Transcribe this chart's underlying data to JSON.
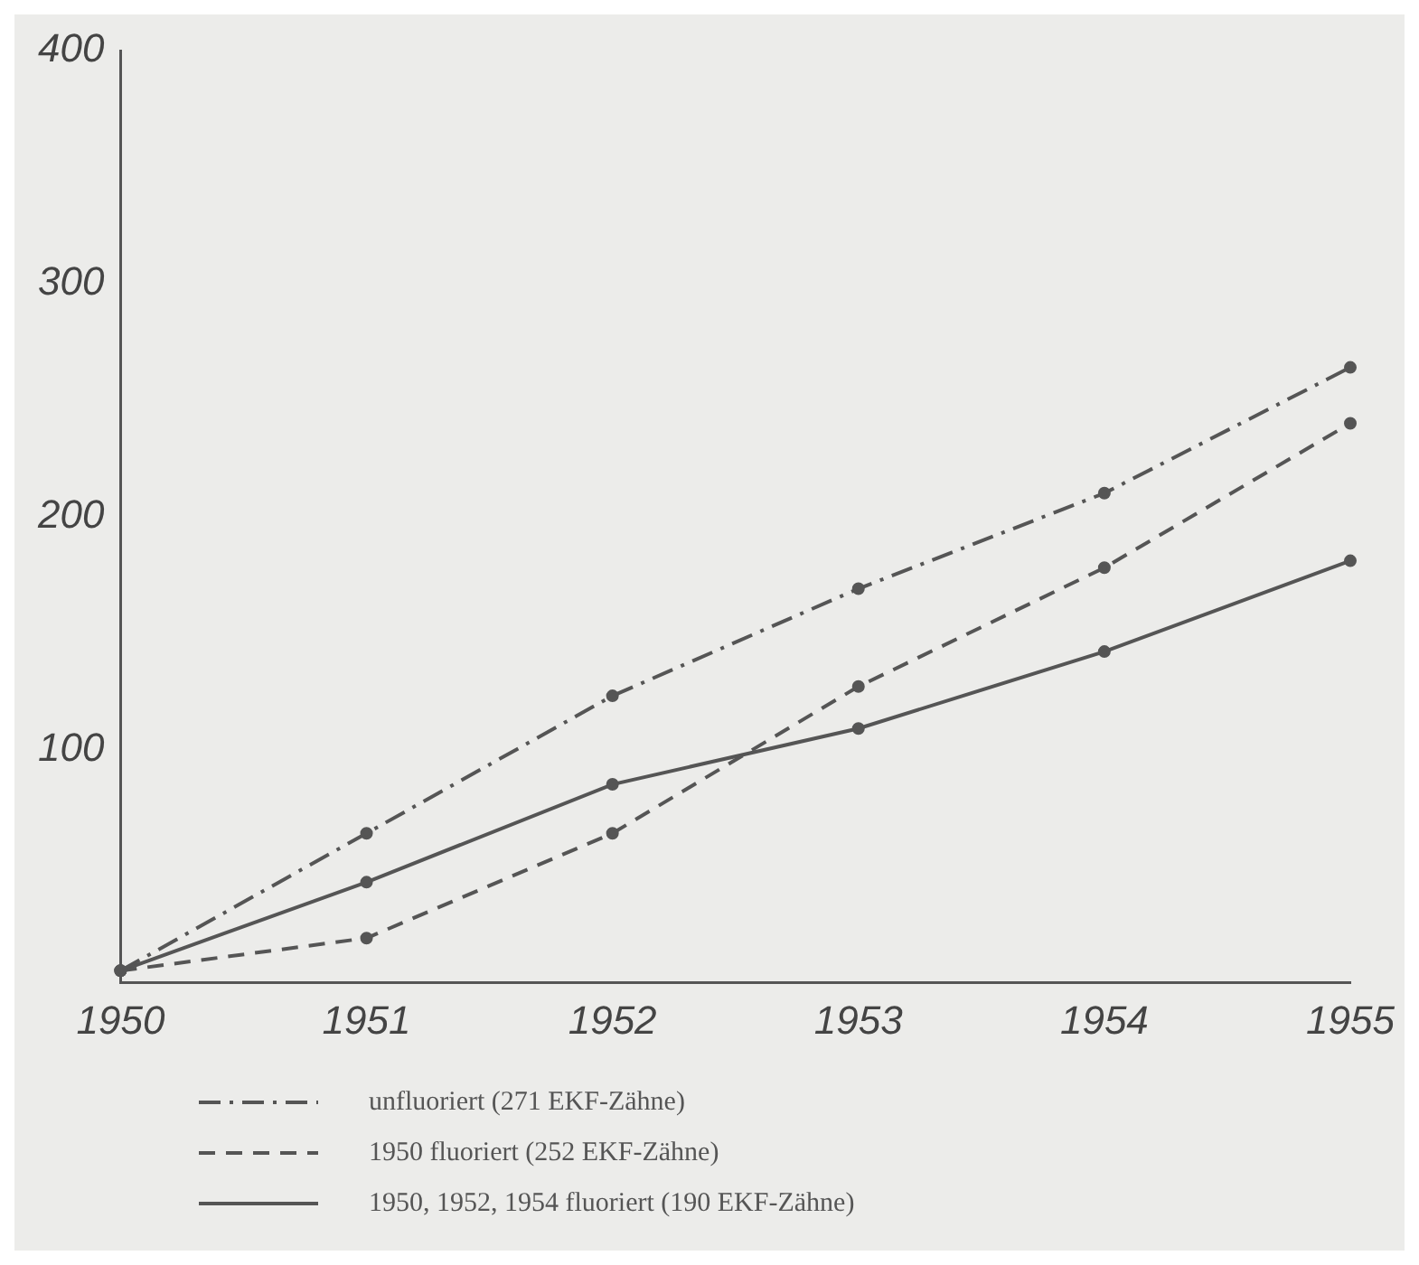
{
  "chart_data": {
    "type": "line",
    "categories": [
      "1950",
      "1951",
      "1952",
      "1953",
      "1954",
      "1955"
    ],
    "series": [
      {
        "name": "unfluoriert (271 EKF-Zähne)",
        "color": "#555555",
        "line_style": "dashdot",
        "values": [
          5,
          64,
          123,
          169,
          210,
          264
        ]
      },
      {
        "name": "1950 fluoriert (252 EKF-Zähne)",
        "color": "#555555",
        "line_style": "dashed",
        "values": [
          5,
          19,
          64,
          127,
          178,
          240
        ]
      },
      {
        "name": "1950, 1952, 1954 fluoriert (190 EKF-Zähne)",
        "color": "#555555",
        "line_style": "solid",
        "values": [
          5,
          43,
          85,
          109,
          142,
          181
        ]
      }
    ],
    "ylim": [
      0,
      400
    ],
    "yticks": [
      {
        "value": 0,
        "label": null
      },
      100,
      200,
      300,
      400
    ],
    "grid": false,
    "legend": "bottom",
    "marker": "circle"
  }
}
